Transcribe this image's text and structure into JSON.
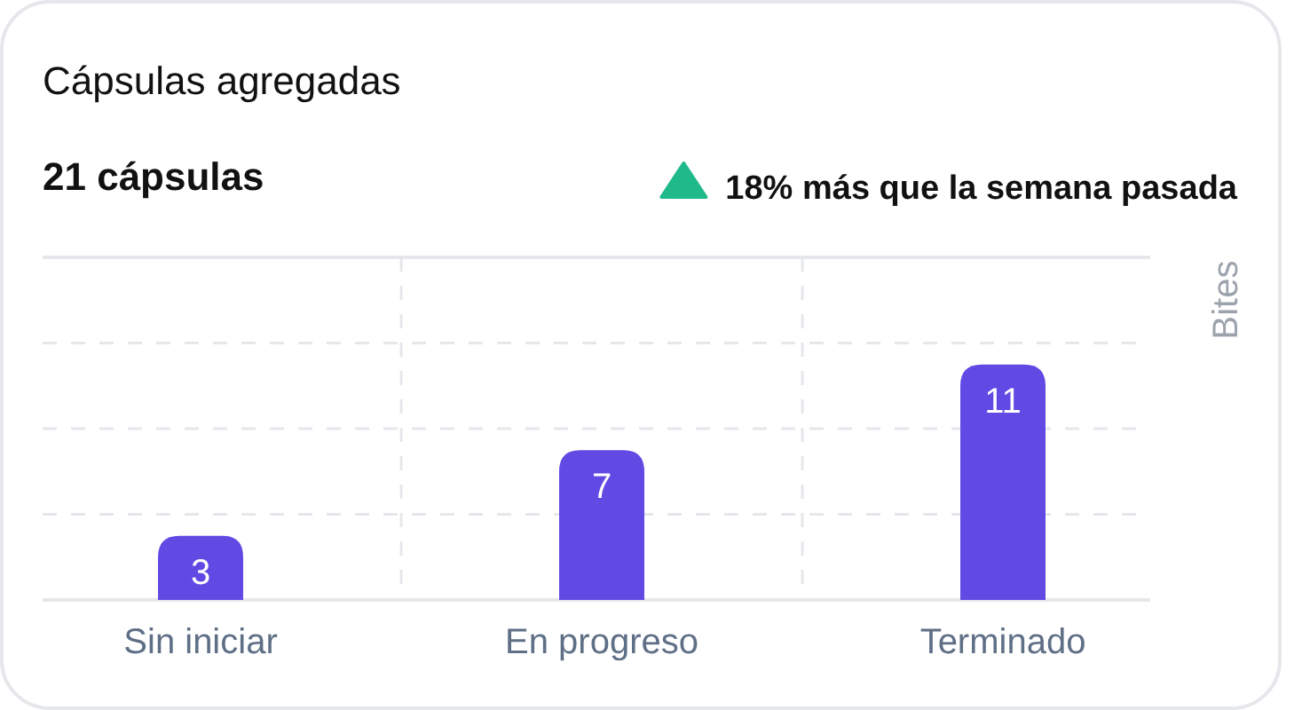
{
  "chart_data": {
    "type": "bar",
    "title": "Cápsulas agregadas",
    "subtitle": "21 cápsulas",
    "annotations": [
      "18% más que la semana pasada"
    ],
    "categories": [
      "Sin iniciar",
      "En progreso",
      "Terminado"
    ],
    "values": [
      3,
      7,
      11
    ],
    "color": "#614ae4",
    "ylabel": "Bites",
    "ylim": [
      0,
      16
    ],
    "yticks": [
      {
        "value": 0,
        "label": null
      },
      {
        "value": 4,
        "label": null
      },
      {
        "value": 8,
        "label": null
      },
      {
        "value": 12,
        "label": null
      },
      {
        "value": 16,
        "label": null
      }
    ],
    "tick_labels": "x",
    "grid": true,
    "data_labels": true
  }
}
